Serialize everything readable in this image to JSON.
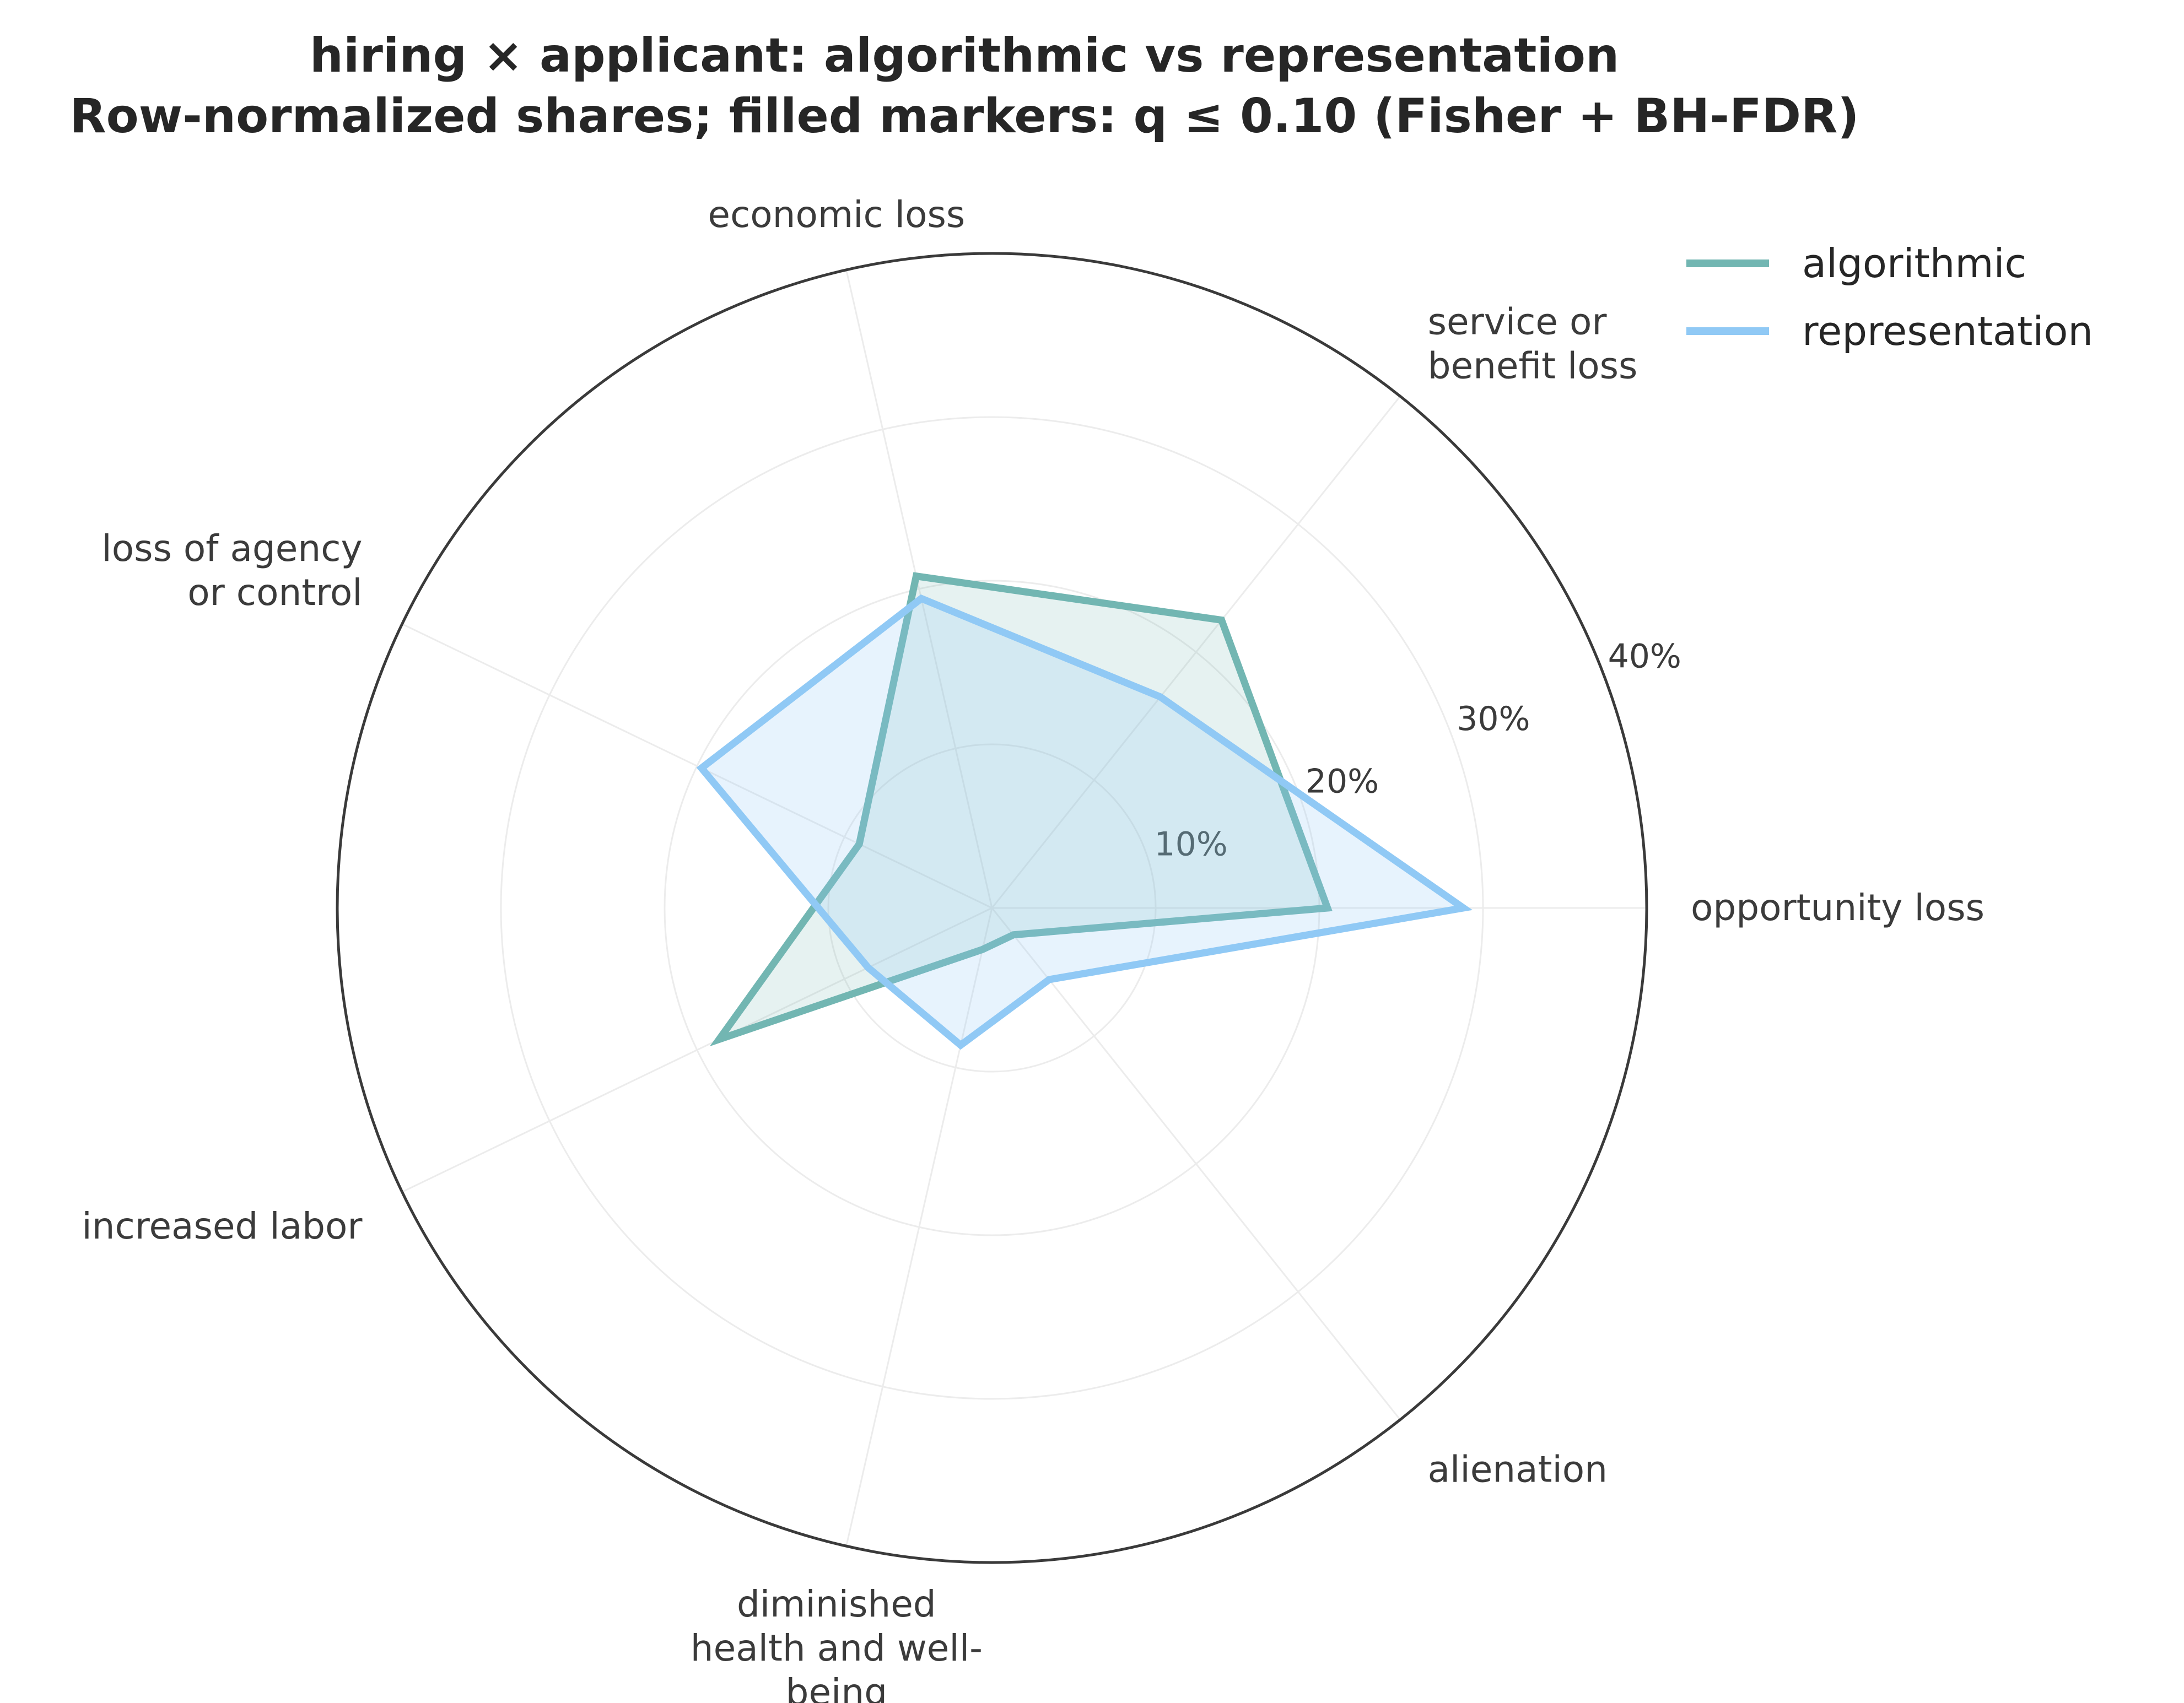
{
  "title_line1": "hiring × applicant: algorithmic vs representation",
  "title_line2": "Row-normalized shares; filled markers: q ≤ 0.10 (Fisher + BH-FDR)",
  "chart_data": {
    "type": "radar",
    "title": "hiring × applicant: algorithmic vs representation",
    "subtitle": "Row-normalized shares; filled markers: q ≤ 0.10 (Fisher + BH-FDR)",
    "categories": [
      [
        "opportunity loss"
      ],
      [
        "service or",
        "benefit loss"
      ],
      [
        "economic loss"
      ],
      [
        "loss of agency",
        "or control"
      ],
      [
        "increased labor"
      ],
      [
        "diminished",
        "health and well-",
        "being"
      ],
      [
        "alienation"
      ]
    ],
    "r_ticks": [
      10,
      20,
      30,
      40
    ],
    "r_tick_labels": [
      "10%",
      "20%",
      "30%",
      "40%"
    ],
    "rlim": [
      0,
      40
    ],
    "grid": true,
    "legend_position": "top-right",
    "series": [
      {
        "name": "algorithmic",
        "color": "#72b6b2",
        "values": [
          20.5,
          22.5,
          20.8,
          9.0,
          18.5,
          2.6,
          2.1
        ]
      },
      {
        "name": "representation",
        "color": "#90c9f5",
        "values": [
          28.8,
          16.5,
          19.4,
          19.7,
          8.4,
          8.6,
          5.6
        ]
      }
    ]
  }
}
